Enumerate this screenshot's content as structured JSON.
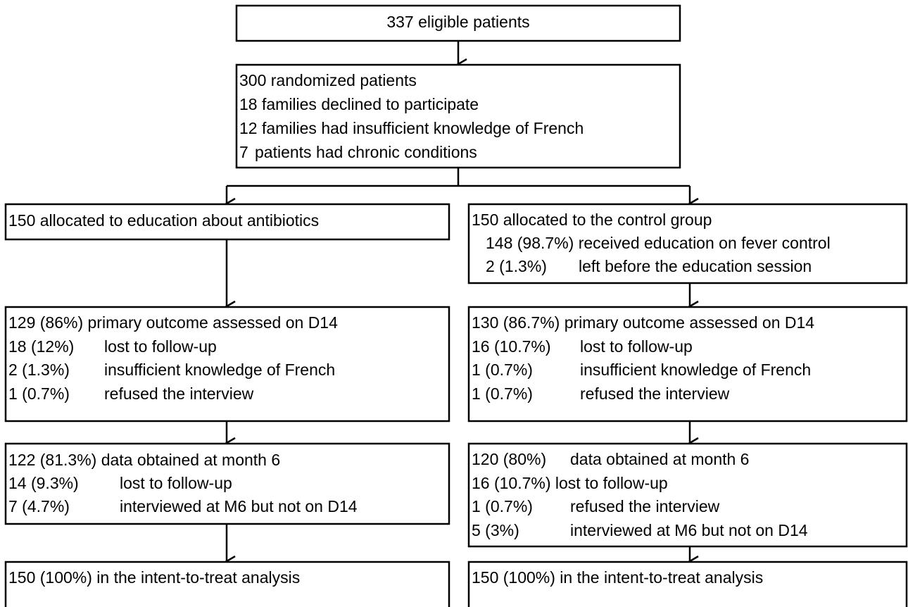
{
  "boxes": [
    {
      "lines": [
        "337 eligible patients"
      ]
    },
    {
      "lines": [
        "300 randomized patients",
        "18 families declined to participate",
        "12 families had insufficient knowledge of French",
        {
          "count": "7",
          "text": "patients had chronic conditions"
        }
      ]
    },
    {
      "lines": [
        "150 allocated to education about antibiotics"
      ]
    },
    {
      "lines": [
        "150 allocated to the control group",
        "148 (98.7%) received education on fever control",
        {
          "count": "2 (1.3%)",
          "text": "left before the education session"
        }
      ]
    },
    {
      "lines": [
        "129 (86%) primary outcome assessed on D14",
        {
          "count": "18 (12%)",
          "text": "lost to follow-up"
        },
        {
          "count": "2 (1.3%)",
          "text": "insufficient knowledge of French"
        },
        {
          "count": "1 (0.7%)",
          "text": "refused the interview"
        }
      ]
    },
    {
      "lines": [
        "130 (86.7%) primary outcome assessed on D14",
        {
          "count": "16 (10.7%)",
          "text": "lost to follow-up"
        },
        {
          "count": "1 (0.7%)",
          "text": "insufficient knowledge of French"
        },
        {
          "count": "1 (0.7%)",
          "text": "refused the interview"
        }
      ]
    },
    {
      "lines": [
        "122 (81.3%) data obtained at month 6",
        {
          "count": "14 (9.3%)",
          "text": "lost to follow-up"
        },
        {
          "count": "7 (4.7%)",
          "text": "interviewed at M6 but not on D14"
        }
      ]
    },
    {
      "lines": [
        {
          "count": "120 (80%)",
          "text": "data obtained at month 6"
        },
        "16 (10.7%) lost to follow-up",
        {
          "count": "1 (0.7%)",
          "text": "refused the interview"
        },
        {
          "count": "5 (3%)",
          "text": "interviewed at M6 but not on D14"
        }
      ]
    },
    {
      "lines": [
        "150 (100%) in the intent-to-treat analysis"
      ]
    },
    {
      "lines": [
        "150 (100%) in the intent-to-treat analysis"
      ]
    }
  ]
}
